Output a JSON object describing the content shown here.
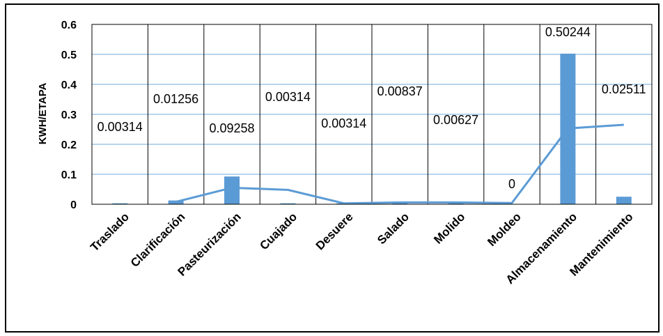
{
  "chart_data": {
    "type": "bar",
    "ylabel": "KWH/ETAPA",
    "ylim": [
      0,
      0.6
    ],
    "yticks": [
      "0",
      "0.1",
      "0.2",
      "0.3",
      "0.4",
      "0.5",
      "0.6"
    ],
    "grid": true,
    "categories": [
      "Traslado",
      "Clarificación",
      "Pasteurización",
      "Cuajado",
      "Desuere",
      "Salado",
      "Molido",
      "Moldeo",
      "Almacenamiento",
      "Mantenimiento"
    ],
    "series": [
      {
        "type": "bar",
        "color": "#5b9bd5",
        "values": [
          0.00314,
          0.01256,
          0.09258,
          0.00314,
          0.00314,
          0.00837,
          0.00627,
          0,
          0.50244,
          0.02511
        ],
        "data_labels": [
          "0.00314",
          "0.01256",
          "0.09258",
          "0.00314",
          "0.00314",
          "0.00837",
          "0.00627",
          "0",
          "0.50244",
          "0.02511"
        ]
      },
      {
        "type": "line",
        "color": "#5b9bd5",
        "values": [
          null,
          0.008,
          0.055,
          0.048,
          0.003,
          0.006,
          0.006,
          0.004,
          0.253,
          0.265
        ]
      }
    ]
  }
}
